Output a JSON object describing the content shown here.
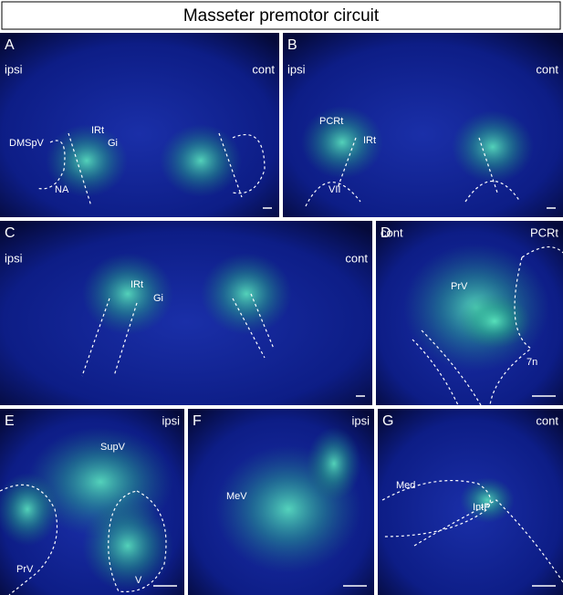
{
  "title": "Masseter premotor circuit",
  "panels": [
    {
      "letter": "A",
      "labels": [
        "ipsi",
        "cont",
        "DMSpV",
        "IRt",
        "Gi",
        "NA"
      ]
    },
    {
      "letter": "B",
      "labels": [
        "ipsi",
        "cont",
        "PCRt",
        "IRt",
        "VII"
      ]
    },
    {
      "letter": "C",
      "labels": [
        "ipsi",
        "cont",
        "IRt",
        "Gi"
      ]
    },
    {
      "letter": "D",
      "labels": [
        "cont",
        "PCRt",
        "PrV",
        "7n"
      ]
    },
    {
      "letter": "E",
      "labels": [
        "ipsi",
        "SupV",
        "PrV",
        "V"
      ]
    },
    {
      "letter": "F",
      "labels": [
        "ipsi",
        "MeV"
      ]
    },
    {
      "letter": "G",
      "labels": [
        "cont",
        "Med",
        "IntP"
      ]
    }
  ]
}
